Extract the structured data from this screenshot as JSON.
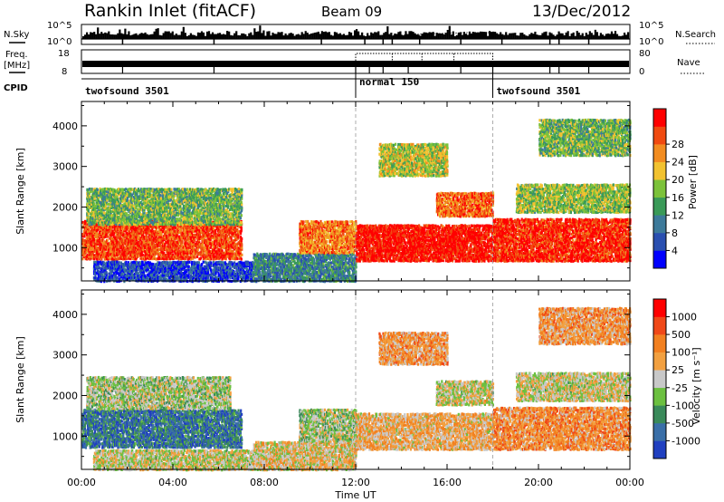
{
  "header": {
    "station": "Rankin Inlet (fitACF)",
    "beam": "Beam 09",
    "date": "13/Dec/2012"
  },
  "aux_panels": {
    "nsky_label": "N.Sky",
    "nsky_ticks": [
      "10^5",
      "10^0"
    ],
    "nsearch_label": "N.Search",
    "nsearch_ticks": [
      "10^5",
      "10^0"
    ],
    "freq_label_1": "Freq.",
    "freq_label_2": "[MHz]",
    "freq_ticks": [
      "18",
      "8"
    ],
    "nave_label": "Nave",
    "nave_ticks": [
      "80",
      "0"
    ],
    "cpid_label": "CPID",
    "cpid_segments": [
      {
        "name": "twofsound 3501",
        "start_hour": 0,
        "end_hour": 12
      },
      {
        "name": "normal 150",
        "start_hour": 12,
        "end_hour": 18
      },
      {
        "name": "twofsound 3501",
        "start_hour": 18,
        "end_hour": 24
      }
    ]
  },
  "chart_data": [
    {
      "type": "heatmap",
      "panel": "power",
      "ylabel": "Slant Range [km]",
      "xlim": [
        0,
        24
      ],
      "ylim": [
        180,
        4600
      ],
      "yticks": [
        1000,
        2000,
        3000,
        4000
      ],
      "colorbar_label": "Power [dB]",
      "colorbar_ticks": [
        4,
        8,
        12,
        16,
        20,
        24,
        28
      ],
      "colorbar_colors": [
        "#0000ff",
        "#2a4fb0",
        "#3d7a9a",
        "#3a9a58",
        "#7cc23a",
        "#f2c230",
        "#f28c20",
        "#f04a10",
        "#ff0000"
      ],
      "regions": [
        {
          "t0": 0.0,
          "t1": 7.0,
          "r0": 750,
          "r1": 1700,
          "level": 0.85
        },
        {
          "t0": 0.2,
          "t1": 7.0,
          "r0": 1600,
          "r1": 2500,
          "level": 0.45
        },
        {
          "t0": 0.5,
          "t1": 7.5,
          "r0": 200,
          "r1": 700,
          "level": 0.15
        },
        {
          "t0": 7.5,
          "t1": 12.0,
          "r0": 200,
          "r1": 900,
          "level": 0.3
        },
        {
          "t0": 9.5,
          "t1": 12.0,
          "r0": 900,
          "r1": 1700,
          "level": 0.75
        },
        {
          "t0": 12.0,
          "t1": 18.0,
          "r0": 700,
          "r1": 1600,
          "level": 0.95
        },
        {
          "t0": 13.0,
          "t1": 16.0,
          "r0": 2800,
          "r1": 3600,
          "level": 0.55
        },
        {
          "t0": 15.5,
          "t1": 18.0,
          "r0": 1800,
          "r1": 2400,
          "level": 0.8
        },
        {
          "t0": 18.0,
          "t1": 24.0,
          "r0": 700,
          "r1": 1750,
          "level": 0.9
        },
        {
          "t0": 19.0,
          "t1": 24.0,
          "r0": 1900,
          "r1": 2600,
          "level": 0.5
        },
        {
          "t0": 20.0,
          "t1": 24.0,
          "r0": 3300,
          "r1": 4200,
          "level": 0.45
        }
      ]
    },
    {
      "type": "heatmap",
      "panel": "velocity",
      "xlabel": "Time UT",
      "ylabel": "Slant Range [km]",
      "xlim": [
        0,
        24
      ],
      "ylim": [
        180,
        4600
      ],
      "yticks": [
        1000,
        2000,
        3000,
        4000
      ],
      "xticks": [
        "00:00",
        "04:00",
        "08:00",
        "12:00",
        "16:00",
        "20:00",
        "00:00"
      ],
      "colorbar_label": "Velocity [m s⁻¹]",
      "colorbar_ticks": [
        1000,
        500,
        100,
        25,
        -25,
        -100,
        -500,
        -1000
      ],
      "colorbar_colors": [
        "#2040c0",
        "#3a6fa8",
        "#3a8a5a",
        "#6cc040",
        "#c8c8c8",
        "#f2a040",
        "#f28020",
        "#f04818",
        "#ff0000"
      ],
      "regions": [
        {
          "t0": 0.0,
          "t1": 7.0,
          "r0": 750,
          "r1": 1700,
          "level": 0.2
        },
        {
          "t0": 0.2,
          "t1": 6.5,
          "r0": 1700,
          "r1": 2500,
          "level": 0.45
        },
        {
          "t0": 0.5,
          "t1": 7.5,
          "r0": 200,
          "r1": 700,
          "level": 0.5
        },
        {
          "t0": 7.5,
          "t1": 12.0,
          "r0": 200,
          "r1": 900,
          "level": 0.55
        },
        {
          "t0": 9.5,
          "t1": 12.0,
          "r0": 900,
          "r1": 1700,
          "level": 0.45
        },
        {
          "t0": 12.0,
          "t1": 18.0,
          "r0": 700,
          "r1": 1600,
          "level": 0.6
        },
        {
          "t0": 13.0,
          "t1": 16.0,
          "r0": 2800,
          "r1": 3600,
          "level": 0.65
        },
        {
          "t0": 15.5,
          "t1": 18.0,
          "r0": 1800,
          "r1": 2400,
          "level": 0.5
        },
        {
          "t0": 18.0,
          "t1": 24.0,
          "r0": 700,
          "r1": 1750,
          "level": 0.68
        },
        {
          "t0": 19.0,
          "t1": 24.0,
          "r0": 1900,
          "r1": 2600,
          "level": 0.5
        },
        {
          "t0": 20.0,
          "t1": 24.0,
          "r0": 3300,
          "r1": 4200,
          "level": 0.65
        }
      ]
    }
  ]
}
